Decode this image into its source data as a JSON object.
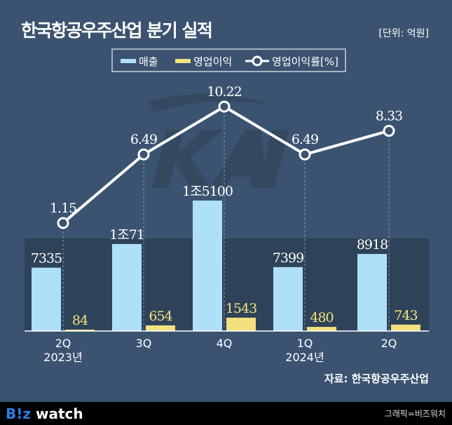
{
  "title": "한국항공우주산업 분기 실적",
  "unit": "[단위: 억원]",
  "source": "자료: 한국항공우주산업",
  "footer": {
    "logo": "B!z watch",
    "credit": "그래픽=비즈워치"
  },
  "watermark": "KAI",
  "colors": {
    "revenue": "#aee0f8",
    "profit": "#f2e17e",
    "background": "#3b5370",
    "panel": "#2e4259"
  },
  "chart_data": {
    "type": "bar",
    "title": "한국항공우주산업 분기 실적",
    "categories": [
      "2Q",
      "3Q",
      "4Q",
      "1Q",
      "2Q"
    ],
    "year_labels": [
      "2023년",
      "",
      "",
      "2024년",
      ""
    ],
    "legend": [
      "매출",
      "영업이익",
      "영업이익률[%]"
    ],
    "legend_position": "top-center",
    "series": [
      {
        "name": "매출",
        "type": "bar",
        "values": [
          7335,
          10071,
          15100,
          7399,
          8918
        ],
        "labels": [
          "7335",
          "1조71",
          "1조5100",
          "7399",
          "8918"
        ]
      },
      {
        "name": "영업이익",
        "type": "bar",
        "values": [
          84,
          654,
          1543,
          480,
          743
        ],
        "labels": [
          "84",
          "654",
          "1543",
          "480",
          "743"
        ]
      },
      {
        "name": "영업이익률[%]",
        "type": "line",
        "values": [
          1.15,
          6.49,
          10.22,
          6.49,
          8.33
        ],
        "labels": [
          "1.15",
          "6.49",
          "10.22",
          "6.49",
          "8.33"
        ]
      }
    ]
  }
}
